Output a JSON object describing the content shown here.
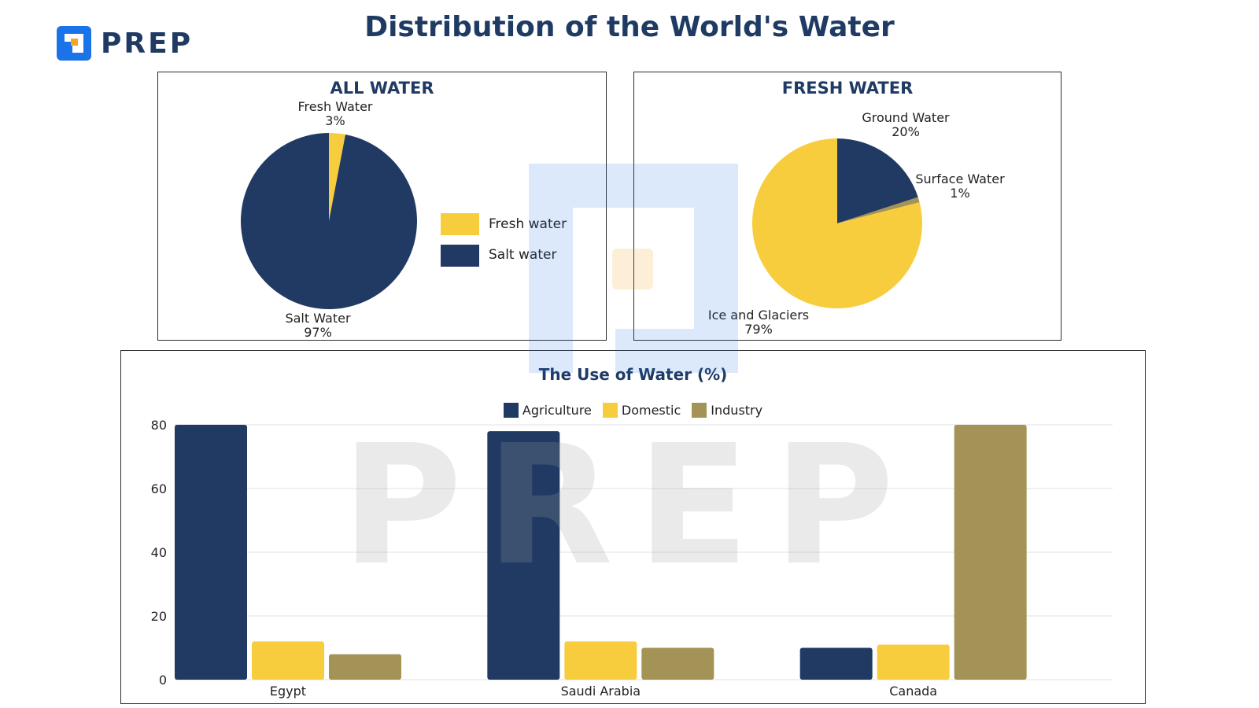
{
  "header": {
    "logo_text": "PREP",
    "title": "Distribution of the World's Water"
  },
  "colors": {
    "navy": "#213a63",
    "yellow": "#f8cd3d",
    "olive": "#a39357",
    "brand_blue": "#1a73e8",
    "brand_orange": "#f5a623"
  },
  "watermark": "PREP",
  "chart_data": [
    {
      "type": "pie",
      "title": "ALL WATER",
      "slices": [
        {
          "name": "Fresh Water",
          "label_value": "3%",
          "value": 3,
          "color": "#f8cd3d"
        },
        {
          "name": "Salt Water",
          "label_value": "97%",
          "value": 97,
          "color": "#213a63"
        }
      ],
      "legend": [
        {
          "label": "Fresh water",
          "color": "#f8cd3d"
        },
        {
          "label": "Salt water",
          "color": "#213a63"
        }
      ],
      "legend_position": "right"
    },
    {
      "type": "pie",
      "title": "FRESH WATER",
      "slices": [
        {
          "name": "Ground Water",
          "label_value": "20%",
          "value": 20,
          "color": "#213a63"
        },
        {
          "name": "Surface Water",
          "label_value": "1%",
          "value": 1,
          "color": "#a39357"
        },
        {
          "name": "Ice and Glaciers",
          "label_value": "79%",
          "value": 79,
          "color": "#f8cd3d"
        }
      ]
    },
    {
      "type": "bar",
      "title": "The Use of Water (%)",
      "categories": [
        "Egypt",
        "Saudi Arabia",
        "Canada"
      ],
      "series": [
        {
          "name": "Agriculture",
          "values": [
            80,
            78,
            10
          ],
          "color": "#213a63"
        },
        {
          "name": "Domestic",
          "values": [
            12,
            12,
            11
          ],
          "color": "#f8cd3d"
        },
        {
          "name": "Industry",
          "values": [
            8,
            10,
            80
          ],
          "color": "#a39357"
        }
      ],
      "yticks": [
        0,
        20,
        40,
        60,
        80
      ],
      "ylim": [
        0,
        80
      ],
      "grid": true,
      "legend_position": "top"
    }
  ]
}
